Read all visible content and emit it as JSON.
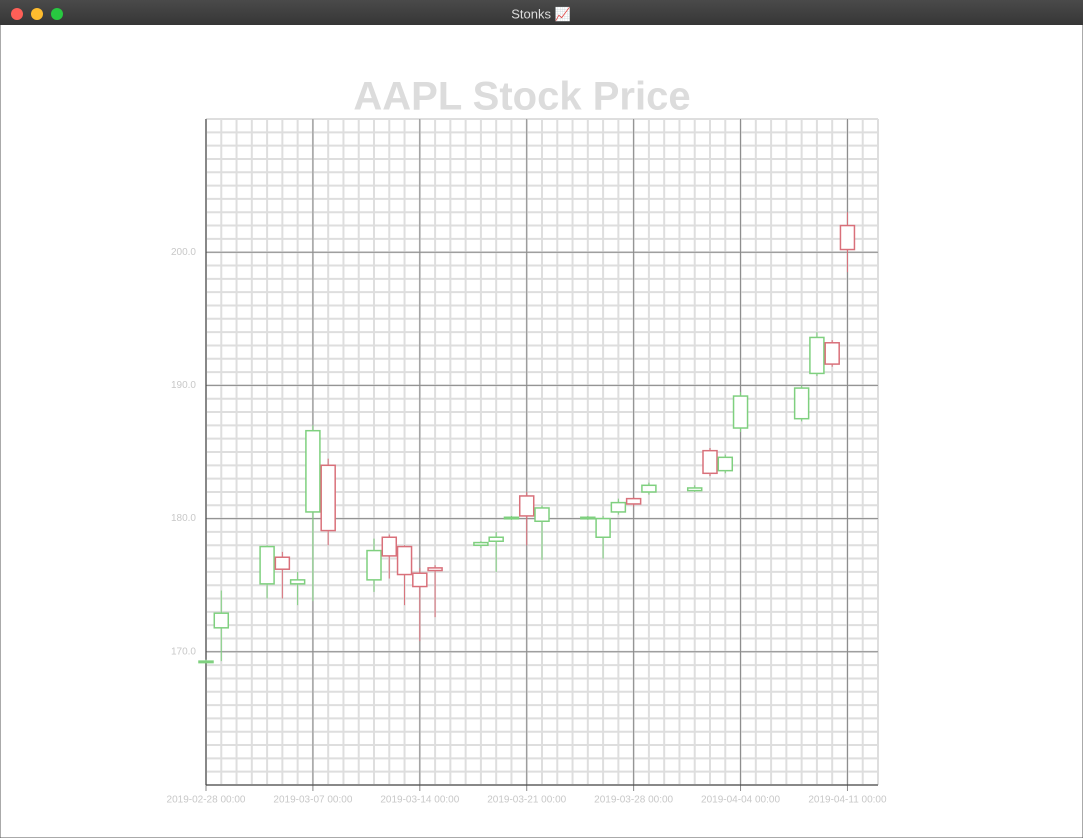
{
  "window": {
    "title": "Stonks 📈"
  },
  "chart_data": {
    "type": "candlestick",
    "title": "AAPL Stock Price",
    "x": [
      "2019-02-28",
      "2019-03-01",
      "2019-03-04",
      "2019-03-05",
      "2019-03-06",
      "2019-03-07",
      "2019-03-08",
      "2019-03-11",
      "2019-03-12",
      "2019-03-13",
      "2019-03-14",
      "2019-03-15",
      "2019-03-18",
      "2019-03-19",
      "2019-03-20",
      "2019-03-21",
      "2019-03-22",
      "2019-03-25",
      "2019-03-26",
      "2019-03-27",
      "2019-03-28",
      "2019-03-29",
      "2019-04-01",
      "2019-04-02",
      "2019-04-03",
      "2019-04-04",
      "2019-04-08",
      "2019-04-09",
      "2019-04-10",
      "2019-04-11"
    ],
    "open": [
      169.2,
      171.8,
      175.1,
      177.1,
      175.1,
      180.5,
      184.0,
      175.4,
      178.6,
      177.9,
      175.9,
      176.3,
      178.0,
      178.3,
      180.0,
      181.7,
      179.8,
      180.0,
      178.6,
      180.5,
      181.5,
      182.0,
      182.1,
      185.1,
      183.6,
      186.8,
      187.5,
      190.9,
      193.2,
      202.0
    ],
    "close": [
      169.3,
      172.9,
      177.9,
      176.2,
      175.4,
      186.6,
      179.1,
      177.6,
      177.2,
      175.8,
      174.9,
      176.1,
      178.2,
      178.6,
      180.1,
      180.2,
      180.8,
      180.1,
      180.0,
      181.2,
      181.1,
      182.5,
      182.3,
      183.4,
      184.6,
      189.2,
      189.8,
      193.6,
      191.6,
      200.2
    ],
    "high": [
      169.4,
      174.6,
      178.0,
      177.5,
      176.0,
      187.0,
      184.5,
      178.5,
      178.8,
      178.0,
      176.3,
      176.5,
      178.3,
      179.0,
      180.2,
      182.0,
      181.0,
      180.2,
      180.2,
      181.5,
      181.6,
      182.7,
      182.5,
      185.3,
      184.8,
      189.5,
      190.0,
      194.0,
      193.4,
      203.0
    ],
    "low": [
      169.2,
      169.3,
      174.0,
      174.0,
      173.5,
      173.8,
      178.0,
      174.5,
      175.5,
      173.5,
      170.8,
      172.6,
      177.8,
      176.0,
      179.9,
      178.0,
      176.9,
      179.9,
      177.0,
      180.3,
      180.9,
      181.8,
      182.0,
      183.2,
      183.4,
      186.5,
      187.3,
      190.7,
      191.4,
      198.5
    ],
    "up_color": "#7fd07f",
    "down_color": "#d9707a",
    "xlim": [
      "2019-02-28",
      "2019-04-13"
    ],
    "xticks": [
      {
        "value": "2019-02-28",
        "label": "2019-02-28 00:00"
      },
      {
        "value": "2019-03-07",
        "label": "2019-03-07 00:00"
      },
      {
        "value": "2019-03-14",
        "label": "2019-03-14 00:00"
      },
      {
        "value": "2019-03-21",
        "label": "2019-03-21 00:00"
      },
      {
        "value": "2019-03-28",
        "label": "2019-03-28 00:00"
      },
      {
        "value": "2019-04-04",
        "label": "2019-04-04 00:00"
      },
      {
        "value": "2019-04-11",
        "label": "2019-04-11 00:00"
      }
    ],
    "ylim": [
      160,
      210
    ],
    "yticks": [
      {
        "value": 170,
        "label": "170.0"
      },
      {
        "value": 180,
        "label": "180.0"
      },
      {
        "value": 190,
        "label": "190.0"
      },
      {
        "value": 200,
        "label": "200.0"
      }
    ],
    "grid": true,
    "minor_grid": true
  }
}
